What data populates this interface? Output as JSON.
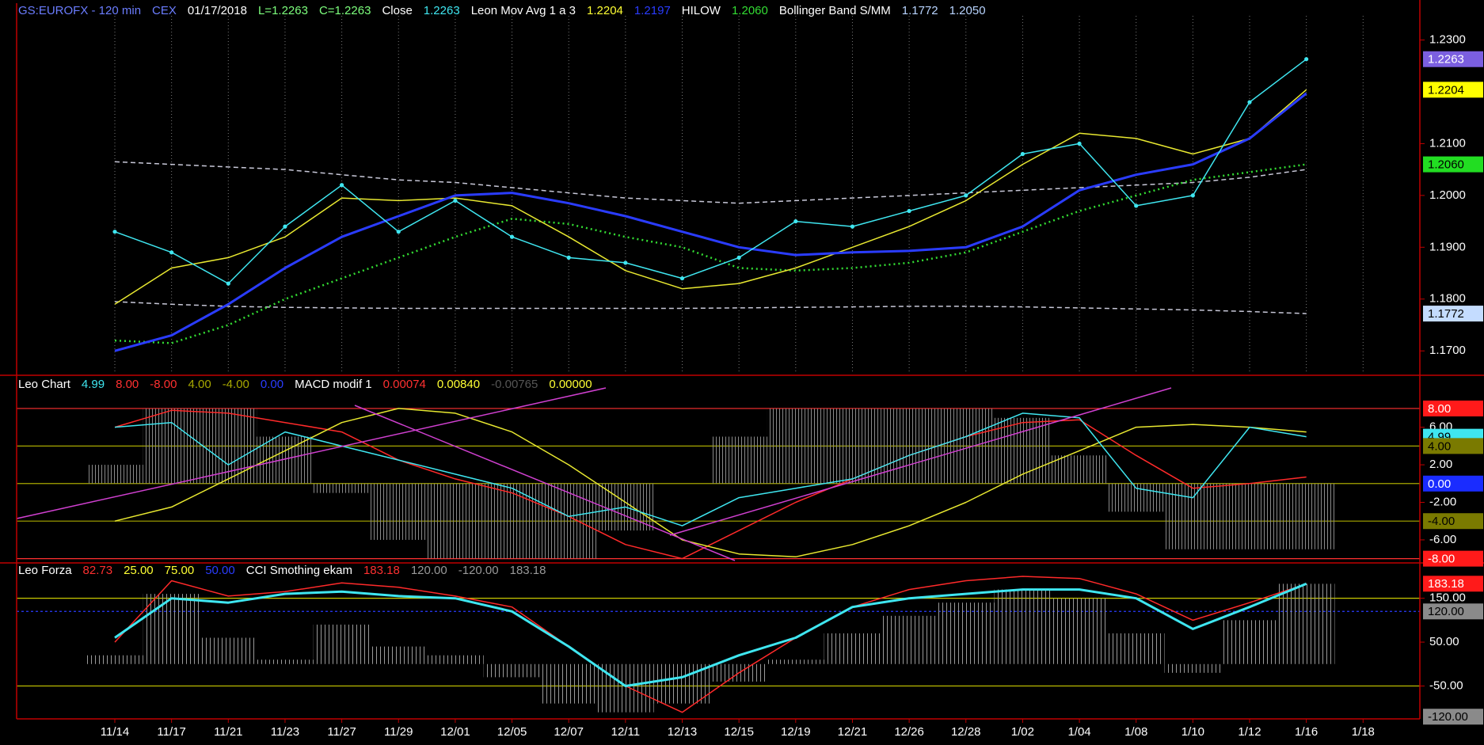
{
  "chart_data": [
    {
      "type": "line",
      "header": [
        {
          "text": "GS:EUROFX - 120 min",
          "color": "#6b7dff"
        },
        {
          "text": "CEX",
          "color": "#6b7dff"
        },
        {
          "text": "01/17/2018",
          "color": "#ffffff"
        },
        {
          "text": "L=1.2263",
          "color": "#7dff7d"
        },
        {
          "text": "C=1.2263",
          "color": "#7dff7d"
        },
        {
          "text": "Close",
          "color": "#ffffff"
        },
        {
          "text": "1.2263",
          "color": "#3fe6f0"
        },
        {
          "text": "Leon Mov Avg 1 a 3",
          "color": "#ffffff"
        },
        {
          "text": "1.2204",
          "color": "#ffff33"
        },
        {
          "text": "1.2197",
          "color": "#2a3cff"
        },
        {
          "text": "HILOW",
          "color": "#ffffff"
        },
        {
          "text": "1.2060",
          "color": "#33dd33"
        },
        {
          "text": "Bollinger Band S/MM",
          "color": "#ffffff"
        },
        {
          "text": "1.1772",
          "color": "#b8d4ff"
        },
        {
          "text": "1.2050",
          "color": "#b8d4ff"
        }
      ],
      "ylim": [
        1.1656,
        1.2368
      ],
      "yticks": [
        {
          "value": 1.23,
          "label": "1.2300"
        },
        {
          "value": 1.21,
          "label": "1.2100"
        },
        {
          "value": 1.2,
          "label": "1.2000"
        },
        {
          "value": 1.19,
          "label": "1.1900"
        },
        {
          "value": 1.18,
          "label": "1.1800"
        },
        {
          "value": 1.17,
          "label": "1.1700"
        }
      ],
      "grid": true,
      "series": [
        {
          "name": "Bollinger Band S/MM",
          "color": "#c8c8d8",
          "style": "dashed",
          "values": [
            1.2065,
            1.206,
            1.2055,
            1.205,
            1.204,
            1.203,
            1.2025,
            1.2015,
            1.2005,
            1.1995,
            1.199,
            1.1985,
            1.199,
            1.1995,
            1.2,
            1.2005,
            1.201,
            1.2015,
            1.202,
            1.2025,
            1.2035,
            1.205,
            null
          ]
        },
        {
          "name": "Bollinger Band S/MM",
          "color": "#c8c8d8",
          "style": "dashed",
          "values": [
            1.1795,
            1.179,
            1.1786,
            1.1784,
            1.1783,
            1.1782,
            1.1782,
            1.1782,
            1.1782,
            1.1782,
            1.1782,
            1.1783,
            1.1784,
            1.1785,
            1.1786,
            1.1786,
            1.1785,
            1.1783,
            1.1781,
            1.1779,
            1.1776,
            1.1772,
            null
          ]
        },
        {
          "name": "HILOW",
          "color": "#33dd33",
          "style": "dotted",
          "values": [
            1.172,
            1.1715,
            1.175,
            1.18,
            1.184,
            1.188,
            1.192,
            1.1955,
            1.1945,
            1.192,
            1.19,
            1.186,
            1.1855,
            1.186,
            1.187,
            1.189,
            1.193,
            1.197,
            1.2,
            1.203,
            1.2045,
            1.206,
            null
          ]
        },
        {
          "name": "Leon Mov Avg 1 a 3",
          "color": "#e8e830",
          "style": "solid",
          "values": [
            1.179,
            1.186,
            1.188,
            1.192,
            1.1995,
            1.199,
            1.1995,
            1.198,
            1.192,
            1.1855,
            1.182,
            1.183,
            1.186,
            1.19,
            1.194,
            1.199,
            1.206,
            1.212,
            1.211,
            1.208,
            1.211,
            1.2204,
            null
          ]
        },
        {
          "name": "Leon Mov Avg 1 a 3",
          "color": "#2a3cff",
          "style": "thick",
          "values": [
            1.17,
            1.173,
            1.179,
            1.186,
            1.192,
            1.196,
            1.2,
            1.2005,
            1.1985,
            1.196,
            1.193,
            1.19,
            1.1885,
            1.189,
            1.1893,
            1.19,
            1.194,
            1.201,
            1.204,
            1.206,
            1.211,
            1.2197,
            null
          ]
        },
        {
          "name": "Close",
          "color": "#3fe6f0",
          "style": "solid",
          "markers": true,
          "values": [
            1.193,
            1.189,
            1.183,
            1.194,
            1.202,
            1.193,
            1.199,
            1.192,
            1.188,
            1.187,
            1.184,
            1.188,
            1.195,
            1.194,
            1.197,
            1.2,
            1.208,
            1.21,
            1.198,
            1.2,
            1.218,
            1.2263,
            null
          ]
        }
      ],
      "boxes": [
        {
          "value": 1.2263,
          "label": "1.2263",
          "color": "#7b5fe0",
          "text_color": "#ffffff"
        },
        {
          "value": 1.2204,
          "label": "1.2204",
          "color": "#ffff00",
          "text_color": "#000000"
        },
        {
          "value": 1.206,
          "label": "1.2060",
          "color": "#22dd22",
          "text_color": "#000000"
        },
        {
          "value": 1.1772,
          "label": "1.1772",
          "color": "#c4dcff",
          "text_color": "#000000"
        }
      ]
    },
    {
      "type": "line",
      "header": [
        {
          "text": "Leo Chart",
          "color": "#ffffff"
        },
        {
          "text": "4.99",
          "color": "#3fe6f0"
        },
        {
          "text": "8.00",
          "color": "#ff3030"
        },
        {
          "text": "-8.00",
          "color": "#ff3030"
        },
        {
          "text": "4.00",
          "color": "#a8a800"
        },
        {
          "text": "-4.00",
          "color": "#a8a800"
        },
        {
          "text": "0.00",
          "color": "#2a3cff"
        },
        {
          "text": "MACD modif 1",
          "color": "#ffffff"
        },
        {
          "text": "0.00074",
          "color": "#ff3030"
        },
        {
          "text": "0.00840",
          "color": "#ffff33"
        },
        {
          "text": "-0.00765",
          "color": "#555555"
        },
        {
          "text": "0.00000",
          "color": "#ffff33"
        }
      ],
      "ylim": [
        -8.2,
        11.2
      ],
      "yticks": [
        {
          "value": 6,
          "label": "6.00"
        },
        {
          "value": 2,
          "label": "2.00"
        },
        {
          "value": -2,
          "label": "-2.00"
        },
        {
          "value": -6,
          "label": "-6.00"
        }
      ],
      "levels": [
        {
          "value": 8,
          "color": "#ff3030"
        },
        {
          "value": 4,
          "color": "#a8a800"
        },
        {
          "value": 0,
          "color": "#a8a800"
        },
        {
          "value": -4,
          "color": "#a8a800"
        },
        {
          "value": -8,
          "color": "#ff3030"
        }
      ],
      "series": [
        {
          "name": "MACD modif 1",
          "color": "#8a8a8a",
          "style": "bars",
          "values": [
            2,
            8,
            8,
            5,
            -1,
            -6,
            -8,
            -8,
            -8,
            -5,
            0,
            5,
            8,
            8,
            8,
            8,
            7,
            3,
            -3,
            -7,
            -7,
            -7,
            null
          ]
        },
        {
          "name": "MACD modif 1",
          "color": "#ff2a2a",
          "style": "solid",
          "values": [
            6,
            7.8,
            7.5,
            6.5,
            5.5,
            2.5,
            0.5,
            -1,
            -3.5,
            -6.5,
            -8,
            -5,
            -2,
            0.5,
            3,
            5,
            6.5,
            6.8,
            3,
            -0.5,
            0,
            0.7,
            null
          ]
        },
        {
          "name": "MACD modif 1",
          "color": "#e8e830",
          "style": "solid",
          "values": [
            -4,
            -2.5,
            0.5,
            3.5,
            6.5,
            8,
            7.5,
            5.5,
            2,
            -2,
            -6,
            -7.5,
            -7.8,
            -6.5,
            -4.5,
            -2,
            1,
            3.5,
            6,
            6.3,
            6,
            5.5,
            null
          ]
        },
        {
          "name": "Leo Chart",
          "color": "#3fe6f0",
          "style": "solid",
          "values": [
            6,
            6.5,
            2,
            5.5,
            4,
            2.5,
            1,
            -0.5,
            -3.5,
            -2.5,
            -4.5,
            -1.5,
            -0.5,
            0.5,
            3,
            5,
            7.5,
            7,
            -0.5,
            -1.5,
            6,
            4.99,
            null
          ]
        }
      ],
      "boxes": [
        {
          "value": 8,
          "label": "8.00",
          "color": "#ff1a1a",
          "text_color": "#ffffff"
        },
        {
          "value": 4.99,
          "label": "4.99",
          "color": "#3fe6f0",
          "text_color": "#000000"
        },
        {
          "value": 4,
          "label": "4.00",
          "color": "#7a7a00",
          "text_color": "#000000"
        },
        {
          "value": 0,
          "label": "0.00",
          "color": "#1a2cff",
          "text_color": "#ffffff"
        },
        {
          "value": -4,
          "label": "-4.00",
          "color": "#7a7a00",
          "text_color": "#000000"
        },
        {
          "value": -8,
          "label": "-8.00",
          "color": "#ff1a1a",
          "text_color": "#ffffff"
        }
      ]
    },
    {
      "type": "line",
      "header": [
        {
          "text": "Leo Forza",
          "color": "#ffffff"
        },
        {
          "text": "82.73",
          "color": "#ff3030"
        },
        {
          "text": "25.00",
          "color": "#ffff33"
        },
        {
          "text": "75.00",
          "color": "#ffff33"
        },
        {
          "text": "50.00",
          "color": "#2a3cff"
        },
        {
          "text": "CCI Smothing ekam",
          "color": "#ffffff"
        },
        {
          "text": "183.18",
          "color": "#ff3030"
        },
        {
          "text": "120.00",
          "color": "#999999"
        },
        {
          "text": "-120.00",
          "color": "#999999"
        },
        {
          "text": "183.18",
          "color": "#999999"
        }
      ],
      "categories": [
        "11/14",
        "11/17",
        "11/21",
        "11/23",
        "11/27",
        "11/29",
        "12/01",
        "12/05",
        "12/07",
        "12/11",
        "12/13",
        "12/15",
        "12/19",
        "12/21",
        "12/26",
        "12/28",
        "1/02",
        "1/04",
        "1/08",
        "1/10",
        "1/12",
        "1/16",
        "1/18"
      ],
      "ylim": [
        -125,
        227
      ],
      "yticks": [
        {
          "value": 150,
          "label": "150.00"
        },
        {
          "value": 50,
          "label": "50.00"
        },
        {
          "value": -50,
          "label": "-50.00"
        }
      ],
      "levels": [
        {
          "value": 150,
          "color": "#c8c800"
        },
        {
          "value": 120,
          "color": "#2a3cff",
          "style": "dashed"
        },
        {
          "value": -50,
          "color": "#c8c800"
        }
      ],
      "series": [
        {
          "name": "CCI Smothing ekam",
          "color": "#9a9a9a",
          "style": "bars",
          "values": [
            20,
            160,
            60,
            10,
            90,
            40,
            20,
            -30,
            -90,
            -110,
            -90,
            -40,
            10,
            70,
            110,
            140,
            170,
            150,
            70,
            -20,
            100,
            183,
            null
          ]
        },
        {
          "name": "CCI Smothing ekam",
          "color": "#ff2a2a",
          "style": "solid",
          "values": [
            50,
            190,
            155,
            165,
            185,
            175,
            155,
            130,
            40,
            -50,
            -110,
            -20,
            60,
            130,
            170,
            190,
            200,
            195,
            160,
            100,
            140,
            183,
            null
          ]
        },
        {
          "name": "Leo Forza",
          "color": "#3fe6f0",
          "style": "thick",
          "values": [
            60,
            150,
            140,
            160,
            165,
            155,
            150,
            120,
            40,
            -50,
            -30,
            20,
            60,
            130,
            150,
            160,
            170,
            170,
            150,
            80,
            130,
            183.18,
            null
          ]
        }
      ],
      "boxes": [
        {
          "value": 183.18,
          "label": "183.18",
          "color": "#ff1a1a",
          "text_color": "#ffffff"
        },
        {
          "value": 120,
          "label": "120.00",
          "color": "#8a8a8a",
          "text_color": "#000000"
        },
        {
          "value": -120,
          "label": "-120.00",
          "color": "#8a8a8a",
          "text_color": "#000000"
        }
      ]
    }
  ]
}
